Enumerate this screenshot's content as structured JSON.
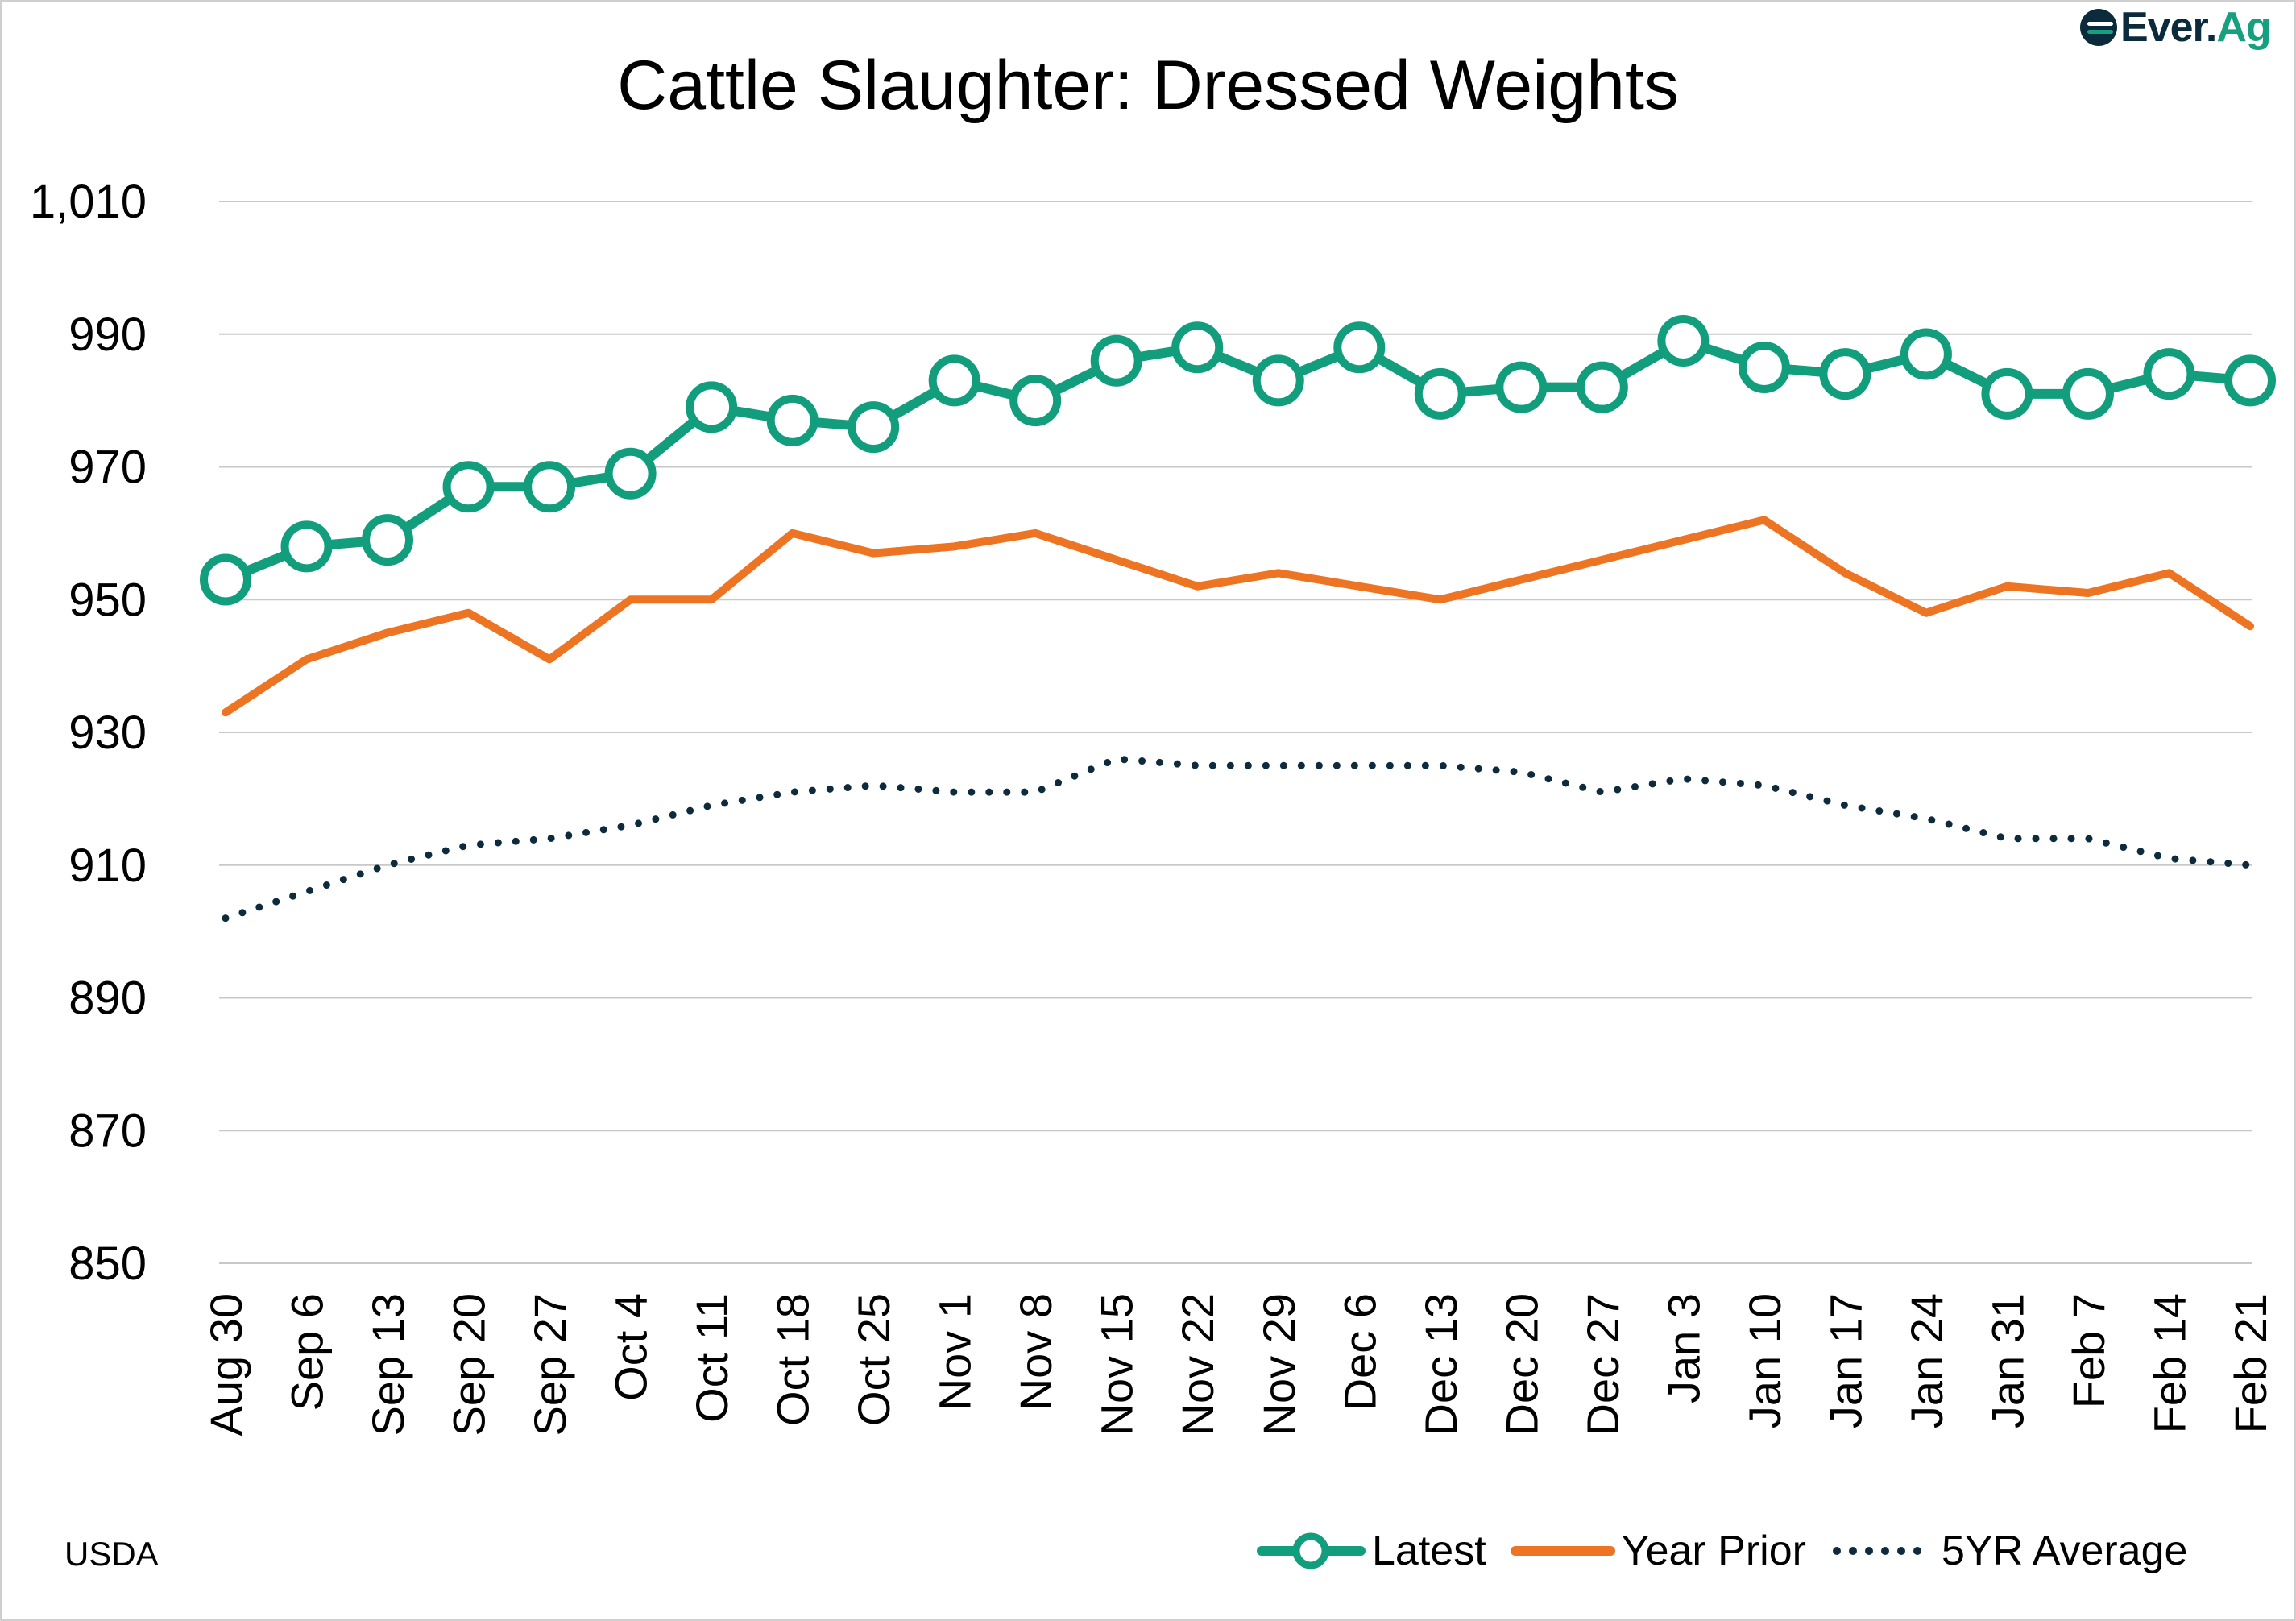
{
  "brand": {
    "name_part1": "Ever.",
    "name_part2": "Ag"
  },
  "source": "USDA",
  "colors": {
    "latest": "#129e7c",
    "year_prior": "#ec7423",
    "five_yr": "#0d2b3d",
    "grid": "#c8c8c8"
  },
  "chart_data": {
    "type": "line",
    "title": "Cattle Slaughter: Dressed Weights",
    "xlabel": "",
    "ylabel": "",
    "ylim": [
      850,
      1010
    ],
    "yticks": [
      1010,
      990,
      970,
      950,
      930,
      910,
      890,
      870,
      850
    ],
    "ytick_labels": [
      "1,010",
      "990",
      "970",
      "950",
      "930",
      "910",
      "890",
      "870",
      "850"
    ],
    "grid": true,
    "legend_position": "bottom-right",
    "categories": [
      "Aug 30",
      "Sep 6",
      "Sep 13",
      "Sep 20",
      "Sep 27",
      "Oct 4",
      "Oct 11",
      "Oct 18",
      "Oct 25",
      "Nov 1",
      "Nov 8",
      "Nov 15",
      "Nov 22",
      "Nov 29",
      "Dec 6",
      "Dec 13",
      "Dec 20",
      "Dec 27",
      "Jan 3",
      "Jan 10",
      "Jan 17",
      "Jan 24",
      "Jan 31",
      "Feb 7",
      "Feb 14",
      "Feb 21"
    ],
    "series": [
      {
        "name": "Latest",
        "style": "solid-markers",
        "values": [
          953,
          958,
          959,
          967,
          967,
          969,
          979,
          977,
          976,
          983,
          980,
          986,
          988,
          983,
          988,
          981,
          982,
          982,
          989,
          985,
          984,
          987,
          981,
          981,
          984,
          983
        ]
      },
      {
        "name": "Year Prior",
        "style": "solid",
        "values": [
          933,
          941,
          945,
          948,
          941,
          950,
          950,
          960,
          957,
          958,
          960,
          956,
          952,
          954,
          952,
          950,
          953,
          956,
          959,
          962,
          954,
          948,
          952,
          951,
          954,
          946
        ]
      },
      {
        "name": "5YR Average",
        "style": "dotted",
        "values": [
          902,
          906,
          910,
          913,
          914,
          916,
          919,
          921,
          922,
          921,
          921,
          926,
          925,
          925,
          925,
          925,
          924,
          921,
          923,
          922,
          919,
          917,
          914,
          914,
          911,
          910
        ]
      }
    ]
  }
}
